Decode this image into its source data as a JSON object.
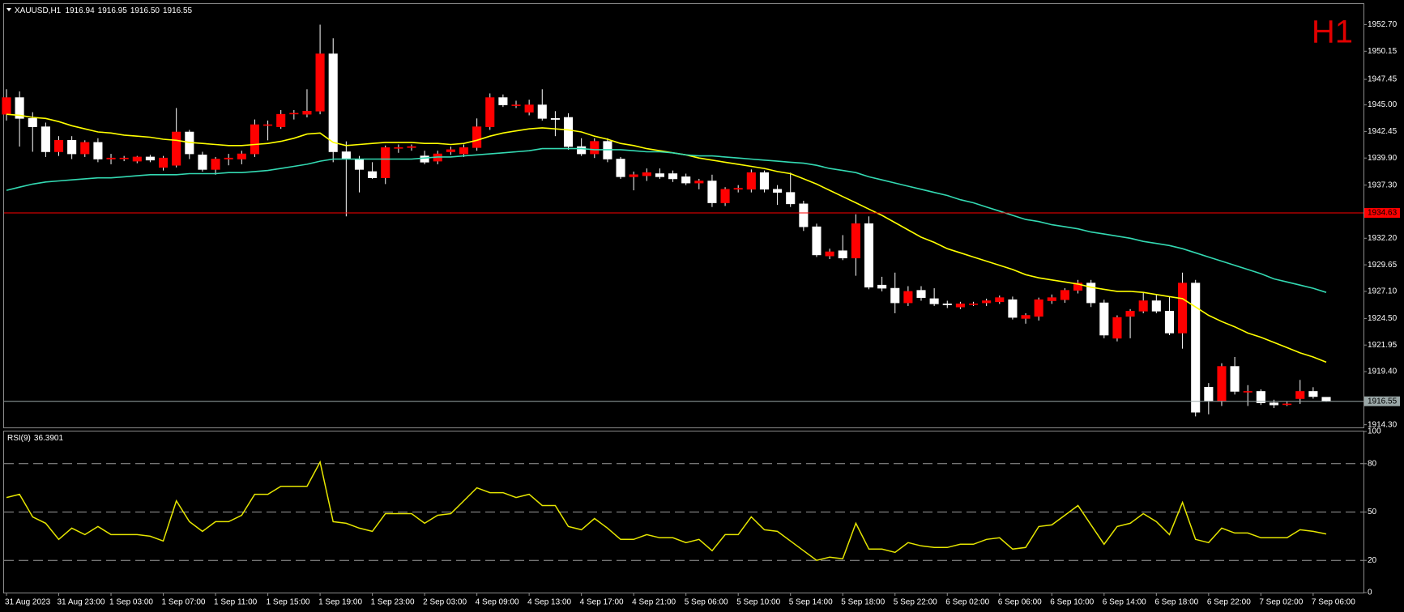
{
  "chart_data": {
    "type": "candlestick",
    "title": "XAUUSD,H1",
    "last_bar_labels": [
      "1916.94",
      "1916.95",
      "1916.50",
      "1916.55"
    ],
    "watermark": "H1",
    "up_color": "#ff0000",
    "down_color": "#ffffff",
    "categories": [
      "31 Aug 2023",
      null,
      null,
      null,
      "31 Aug 23:00",
      null,
      null,
      null,
      "1 Sep 03:00",
      null,
      null,
      null,
      "1 Sep 07:00",
      null,
      null,
      null,
      "1 Sep 11:00",
      null,
      null,
      null,
      "1 Sep 15:00",
      null,
      null,
      null,
      "1 Sep 19:00",
      null,
      null,
      null,
      "1 Sep 23:00",
      null,
      null,
      null,
      "2 Sep 03:00",
      null,
      null,
      null,
      "4 Sep 09:00",
      null,
      null,
      null,
      "4 Sep 13:00",
      null,
      null,
      null,
      "4 Sep 17:00",
      null,
      null,
      null,
      "4 Sep 21:00",
      null,
      null,
      null,
      "5 Sep 06:00",
      null,
      null,
      null,
      "5 Sep 10:00",
      null,
      null,
      null,
      "5 Sep 14:00",
      null,
      null,
      null,
      "5 Sep 18:00",
      null,
      null,
      null,
      "5 Sep 22:00",
      null,
      null,
      null,
      "6 Sep 02:00",
      null,
      null,
      null,
      "6 Sep 06:00",
      null,
      null,
      null,
      "6 Sep 10:00",
      null,
      null,
      null,
      "6 Sep 14:00",
      null,
      null,
      null,
      "6 Sep 18:00",
      null,
      null,
      null,
      "6 Sep 22:00",
      null,
      null,
      null,
      "7 Sep 02:00",
      null,
      null,
      null,
      "7 Sep 06:00",
      null
    ],
    "ohlc": [
      [
        1944.1,
        1946.5,
        1943.5,
        1945.7
      ],
      [
        1945.7,
        1946.3,
        1941.0,
        1943.7
      ],
      [
        1943.7,
        1944.3,
        1940.5,
        1942.9
      ],
      [
        1942.9,
        1943.3,
        1940.0,
        1940.5
      ],
      [
        1940.5,
        1942.0,
        1940.1,
        1941.6
      ],
      [
        1941.6,
        1942.0,
        1939.8,
        1940.3
      ],
      [
        1940.3,
        1941.6,
        1940.0,
        1941.4
      ],
      [
        1941.4,
        1941.8,
        1939.5,
        1939.8
      ],
      [
        1939.8,
        1940.3,
        1939.3,
        1939.9
      ],
      [
        1939.9,
        1940.1,
        1939.6,
        1939.9
      ],
      [
        1939.6,
        1940.1,
        1939.4,
        1940.0
      ],
      [
        1940.0,
        1940.2,
        1939.5,
        1939.7
      ],
      [
        1939.0,
        1940.1,
        1938.7,
        1939.9
      ],
      [
        1939.2,
        1944.7,
        1939.0,
        1942.4
      ],
      [
        1942.4,
        1942.6,
        1939.8,
        1940.3
      ],
      [
        1940.2,
        1940.5,
        1938.6,
        1938.8
      ],
      [
        1938.8,
        1940.0,
        1938.3,
        1939.8
      ],
      [
        1939.8,
        1940.3,
        1939.2,
        1939.9
      ],
      [
        1939.8,
        1940.6,
        1939.3,
        1940.3
      ],
      [
        1940.3,
        1943.6,
        1940.0,
        1943.1
      ],
      [
        1943.1,
        1943.5,
        1941.6,
        1943.1
      ],
      [
        1942.9,
        1944.5,
        1942.7,
        1944.1
      ],
      [
        1944.2,
        1944.5,
        1943.6,
        1944.2
      ],
      [
        1944.1,
        1946.5,
        1943.8,
        1944.4
      ],
      [
        1944.4,
        1952.7,
        1944.1,
        1949.9
      ],
      [
        1949.9,
        1951.4,
        1939.5,
        1940.5
      ],
      [
        1940.5,
        1941.5,
        1934.3,
        1939.8
      ],
      [
        1939.8,
        1940.1,
        1936.6,
        1938.8
      ],
      [
        1938.6,
        1939.5,
        1937.9,
        1938.0
      ],
      [
        1938.0,
        1941.1,
        1937.4,
        1940.9
      ],
      [
        1940.9,
        1941.2,
        1940.4,
        1940.9
      ],
      [
        1940.9,
        1941.2,
        1940.6,
        1941.0
      ],
      [
        1940.1,
        1940.6,
        1939.3,
        1939.5
      ],
      [
        1939.6,
        1940.6,
        1939.3,
        1940.3
      ],
      [
        1940.5,
        1941.0,
        1940.2,
        1940.7
      ],
      [
        1940.3,
        1941.2,
        1940.0,
        1940.9
      ],
      [
        1940.9,
        1943.7,
        1940.6,
        1942.9
      ],
      [
        1942.9,
        1946.1,
        1942.6,
        1945.7
      ],
      [
        1945.7,
        1946.0,
        1944.8,
        1945.0
      ],
      [
        1945.0,
        1945.4,
        1944.7,
        1945.0
      ],
      [
        1944.3,
        1945.5,
        1944.0,
        1945.0
      ],
      [
        1945.0,
        1946.5,
        1943.5,
        1943.7
      ],
      [
        1943.7,
        1944.4,
        1942.0,
        1943.6
      ],
      [
        1943.8,
        1944.2,
        1940.7,
        1941.0
      ],
      [
        1941.0,
        1941.8,
        1940.1,
        1940.3
      ],
      [
        1940.3,
        1941.8,
        1939.9,
        1941.5
      ],
      [
        1941.5,
        1941.8,
        1939.5,
        1939.8
      ],
      [
        1939.8,
        1940.0,
        1937.9,
        1938.1
      ],
      [
        1938.1,
        1938.6,
        1936.8,
        1938.3
      ],
      [
        1938.2,
        1938.9,
        1937.7,
        1938.5
      ],
      [
        1938.4,
        1938.9,
        1937.9,
        1938.1
      ],
      [
        1938.4,
        1938.7,
        1937.6,
        1937.9
      ],
      [
        1938.1,
        1938.4,
        1937.3,
        1937.5
      ],
      [
        1937.5,
        1937.9,
        1936.9,
        1937.7
      ],
      [
        1937.7,
        1938.3,
        1935.2,
        1935.6
      ],
      [
        1935.6,
        1937.1,
        1935.3,
        1936.9
      ],
      [
        1936.9,
        1937.3,
        1936.6,
        1937.0
      ],
      [
        1936.9,
        1938.8,
        1936.6,
        1938.5
      ],
      [
        1938.5,
        1938.7,
        1936.6,
        1936.9
      ],
      [
        1936.9,
        1937.3,
        1935.4,
        1936.6
      ],
      [
        1936.6,
        1938.5,
        1935.2,
        1935.5
      ],
      [
        1935.5,
        1935.8,
        1932.9,
        1933.3
      ],
      [
        1933.3,
        1933.6,
        1930.4,
        1930.6
      ],
      [
        1930.5,
        1931.2,
        1930.2,
        1930.9
      ],
      [
        1931.0,
        1932.5,
        1930.1,
        1930.3
      ],
      [
        1930.3,
        1934.5,
        1928.6,
        1933.6
      ],
      [
        1933.6,
        1934.3,
        1927.3,
        1927.5
      ],
      [
        1927.7,
        1928.5,
        1927.1,
        1927.4
      ],
      [
        1927.4,
        1928.9,
        1925.0,
        1926.0
      ],
      [
        1926.0,
        1927.6,
        1925.7,
        1927.1
      ],
      [
        1927.2,
        1927.6,
        1926.2,
        1926.5
      ],
      [
        1926.4,
        1927.4,
        1925.7,
        1925.9
      ],
      [
        1925.9,
        1926.2,
        1925.5,
        1925.8
      ],
      [
        1925.6,
        1926.1,
        1925.4,
        1925.9
      ],
      [
        1925.9,
        1926.1,
        1925.7,
        1925.9
      ],
      [
        1926.0,
        1926.4,
        1925.7,
        1926.2
      ],
      [
        1926.1,
        1926.7,
        1925.9,
        1926.5
      ],
      [
        1926.3,
        1926.6,
        1924.4,
        1924.6
      ],
      [
        1924.5,
        1925.0,
        1924.0,
        1924.8
      ],
      [
        1924.7,
        1926.5,
        1924.3,
        1926.3
      ],
      [
        1926.2,
        1926.8,
        1925.9,
        1926.5
      ],
      [
        1926.3,
        1927.4,
        1926.0,
        1927.2
      ],
      [
        1927.2,
        1928.2,
        1926.9,
        1927.9
      ],
      [
        1927.9,
        1928.2,
        1925.6,
        1926.0
      ],
      [
        1926.0,
        1926.3,
        1922.6,
        1922.9
      ],
      [
        1922.6,
        1924.8,
        1922.3,
        1924.6
      ],
      [
        1924.7,
        1925.4,
        1922.6,
        1925.2
      ],
      [
        1925.2,
        1927.0,
        1925.0,
        1926.2
      ],
      [
        1926.2,
        1926.8,
        1925.0,
        1925.2
      ],
      [
        1925.2,
        1926.6,
        1922.9,
        1923.1
      ],
      [
        1923.1,
        1928.9,
        1921.6,
        1927.9
      ],
      [
        1927.9,
        1928.2,
        1915.1,
        1915.5
      ],
      [
        1917.9,
        1918.3,
        1915.3,
        1916.6
      ],
      [
        1916.6,
        1920.2,
        1916.1,
        1919.9
      ],
      [
        1919.9,
        1920.8,
        1917.2,
        1917.5
      ],
      [
        1917.5,
        1918.1,
        1916.1,
        1917.5
      ],
      [
        1917.5,
        1917.7,
        1916.2,
        1916.4
      ],
      [
        1916.4,
        1916.7,
        1915.9,
        1916.2
      ],
      [
        1916.3,
        1916.5,
        1916.1,
        1916.3
      ],
      [
        1916.8,
        1918.6,
        1916.3,
        1917.5
      ],
      [
        1917.5,
        1917.9,
        1916.8,
        1917.0
      ],
      [
        1916.94,
        1916.95,
        1916.5,
        1916.55
      ]
    ],
    "series": [
      {
        "color": "#ffff00",
        "values": [
          1944.1,
          1944.0,
          1943.8,
          1943.7,
          1943.4,
          1943.0,
          1942.7,
          1942.4,
          1942.3,
          1942.1,
          1942.0,
          1941.9,
          1941.7,
          1941.6,
          1941.4,
          1941.3,
          1941.2,
          1941.1,
          1941.1,
          1941.2,
          1941.3,
          1941.5,
          1941.8,
          1942.2,
          1942.3,
          1941.4,
          1941.1,
          1941.2,
          1941.3,
          1941.4,
          1941.4,
          1941.4,
          1941.3,
          1941.3,
          1941.2,
          1941.3,
          1941.6,
          1942.0,
          1942.3,
          1942.5,
          1942.7,
          1942.8,
          1942.7,
          1942.6,
          1942.4,
          1942.0,
          1941.7,
          1941.3,
          1941.1,
          1940.8,
          1940.6,
          1940.4,
          1940.2,
          1939.9,
          1939.7,
          1939.5,
          1939.3,
          1939.1,
          1938.9,
          1938.6,
          1938.4,
          1937.9,
          1937.4,
          1936.8,
          1936.2,
          1935.6,
          1935.0,
          1934.4,
          1933.7,
          1933.0,
          1932.3,
          1931.8,
          1931.2,
          1930.8,
          1930.4,
          1930.0,
          1929.6,
          1929.2,
          1928.7,
          1928.4,
          1928.2,
          1928.0,
          1927.8,
          1927.5,
          1927.3,
          1927.1,
          1927.1,
          1927.0,
          1926.8,
          1926.6,
          1926.4,
          1925.6,
          1924.8,
          1924.2,
          1923.7,
          1923.1,
          1922.7,
          1922.2,
          1921.7,
          1921.2,
          1920.8,
          1920.3
        ]
      },
      {
        "color": "#33d9b2",
        "values": [
          1936.8,
          1937.1,
          1937.4,
          1937.6,
          1937.7,
          1937.8,
          1937.9,
          1938.0,
          1938.0,
          1938.1,
          1938.2,
          1938.3,
          1938.3,
          1938.3,
          1938.4,
          1938.4,
          1938.4,
          1938.5,
          1938.5,
          1938.6,
          1938.7,
          1938.9,
          1939.1,
          1939.3,
          1939.6,
          1939.8,
          1939.8,
          1939.8,
          1939.8,
          1939.8,
          1939.8,
          1939.8,
          1939.9,
          1940.0,
          1940.0,
          1940.1,
          1940.2,
          1940.3,
          1940.4,
          1940.5,
          1940.6,
          1940.8,
          1940.8,
          1940.8,
          1940.8,
          1940.7,
          1940.7,
          1940.7,
          1940.6,
          1940.5,
          1940.5,
          1940.4,
          1940.2,
          1940.1,
          1940.1,
          1940.0,
          1939.9,
          1939.8,
          1939.7,
          1939.6,
          1939.5,
          1939.4,
          1939.2,
          1938.9,
          1938.7,
          1938.5,
          1938.1,
          1937.8,
          1937.5,
          1937.2,
          1936.9,
          1936.6,
          1936.3,
          1935.9,
          1935.6,
          1935.2,
          1934.8,
          1934.4,
          1934.0,
          1933.8,
          1933.5,
          1933.3,
          1933.1,
          1932.8,
          1932.6,
          1932.4,
          1932.2,
          1931.9,
          1931.7,
          1931.5,
          1931.2,
          1930.8,
          1930.4,
          1930.0,
          1929.6,
          1929.2,
          1928.8,
          1928.3,
          1928.0,
          1927.7,
          1927.4,
          1927.0
        ]
      }
    ],
    "ylim": [
      1914.04,
      1954.68
    ],
    "yticks": [
      {
        "value": 1952.7,
        "label": "1952.70"
      },
      1950.15,
      1947.45,
      {
        "value": 1945.0,
        "label": "1945.00"
      },
      1942.45,
      {
        "value": 1939.9,
        "label": "1939.90"
      },
      {
        "value": 1937.3,
        "label": "1937.30"
      },
      {
        "value": 1932.2,
        "label": "1932.20"
      },
      1929.65,
      {
        "value": 1927.1,
        "label": "1927.10"
      },
      {
        "value": 1924.5,
        "label": "1924.50"
      },
      1921.95,
      {
        "value": 1919.4,
        "label": "1919.40"
      },
      {
        "value": 1914.3,
        "label": "1914.30"
      }
    ],
    "hlines": [
      {
        "value": 1934.63,
        "color": "#ff0000"
      },
      {
        "value": 1916.55,
        "color": "#9aa7a7"
      }
    ],
    "rsi": {
      "type": "line",
      "title": "RSI(9)",
      "color": "#e6e600",
      "values": [
        59,
        61,
        47,
        43,
        33,
        40,
        36,
        41,
        36,
        36,
        36,
        35,
        32,
        57,
        44,
        38,
        44,
        44,
        48,
        61,
        61,
        66,
        66,
        66,
        81,
        44,
        43,
        40,
        38,
        49,
        49,
        49,
        43,
        48,
        49,
        57,
        65,
        62,
        62,
        59,
        61,
        54,
        54,
        41,
        39,
        46,
        40,
        33,
        33,
        36,
        34,
        34,
        31,
        33,
        26,
        36,
        36,
        47,
        39,
        38,
        32,
        26,
        20,
        22,
        21,
        43,
        27,
        27,
        25,
        31,
        29,
        28,
        28,
        30,
        30,
        33,
        34,
        27,
        28,
        41,
        42,
        48,
        54,
        42,
        30,
        41,
        43,
        49,
        44,
        36,
        56,
        33,
        31,
        40,
        37,
        37,
        34,
        34,
        34,
        39,
        38,
        36.3901
      ],
      "ylim": [
        0,
        100
      ],
      "yticks": [
        0,
        20,
        50,
        80,
        100
      ],
      "levels": [
        20,
        50,
        80
      ]
    }
  }
}
